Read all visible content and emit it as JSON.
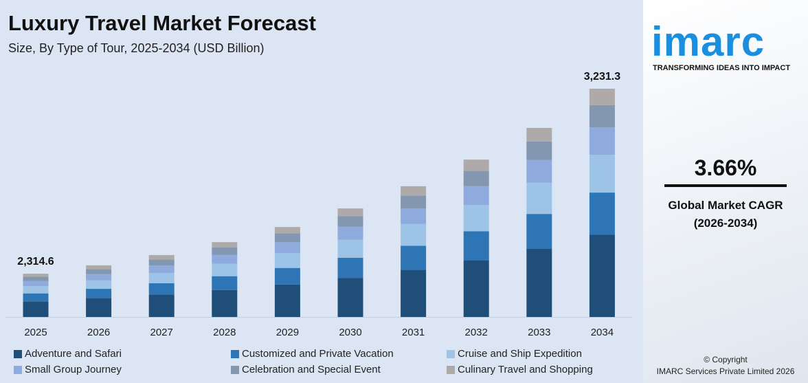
{
  "chart_data": {
    "type": "bar",
    "stacked": true,
    "title": "Luxury Travel Market Forecast",
    "subtitle": "Size, By Type of Tour, 2025-2034 (USD Billion)",
    "xlabel": "",
    "ylabel": "",
    "categories": [
      "2025",
      "2026",
      "2027",
      "2028",
      "2029",
      "2030",
      "2031",
      "2032",
      "2033",
      "2034"
    ],
    "totals": [
      2314.6,
      2356,
      2407,
      2471,
      2546,
      2638,
      2748,
      2880,
      3037,
      3231.3
    ],
    "total_labels": {
      "2025": "2,314.6",
      "2034": "3,231.3"
    },
    "series": [
      {
        "name": "Adventure and Safari",
        "color": "#1f4e79",
        "values": [
          833.3,
          848.2,
          866.5,
          889.6,
          916.6,
          949.7,
          989.3,
          1036.8,
          1093.3,
          1163.3
        ]
      },
      {
        "name": "Customized and Private Vacation",
        "color": "#2e75b6",
        "values": [
          428.2,
          435.9,
          445.3,
          457.1,
          471.0,
          488.0,
          508.4,
          532.8,
          561.8,
          597.8
        ]
      },
      {
        "name": "Cruise and Ship Expedition",
        "color": "#9dc3e6",
        "values": [
          384.2,
          391.1,
          399.6,
          410.2,
          422.6,
          437.9,
          456.2,
          478.1,
          504.1,
          536.4
        ]
      },
      {
        "name": "Small Group Journey",
        "color": "#8faadc",
        "values": [
          277.8,
          282.7,
          288.8,
          296.5,
          305.5,
          316.6,
          329.8,
          345.6,
          364.4,
          387.8
        ]
      },
      {
        "name": "Celebration and Special Event",
        "color": "#8497b0",
        "values": [
          224.5,
          228.5,
          233.5,
          239.7,
          247.0,
          255.9,
          266.6,
          279.4,
          294.6,
          313.4
        ]
      },
      {
        "name": "Culinary Travel and Shopping",
        "color": "#aeaaaa",
        "values": [
          166.7,
          169.6,
          173.3,
          177.9,
          183.3,
          189.9,
          197.9,
          207.4,
          218.7,
          232.7
        ]
      }
    ],
    "legend_position": "bottom",
    "grid": false
  },
  "side": {
    "logo": "imarc",
    "tagline": "TRANSFORMING IDEAS INTO IMPACT",
    "cagr": "3.66%",
    "cagr_label_1": "Global Market CAGR",
    "cagr_label_2": "(2026-2034)",
    "copyright_1": "© Copyright",
    "copyright_2": "IMARC Services Private Limited 2026"
  }
}
